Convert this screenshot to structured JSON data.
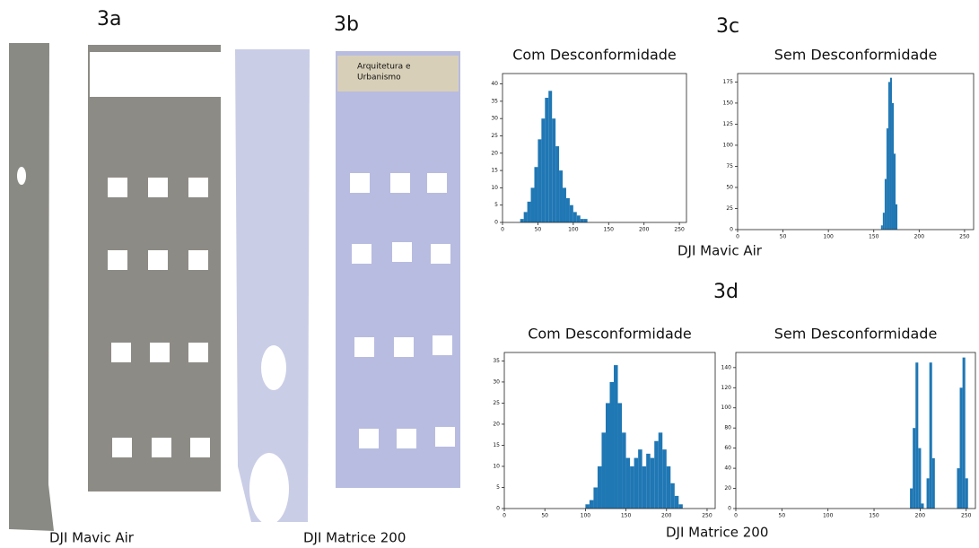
{
  "figure": {
    "labels": [
      "3a",
      "3b",
      "3c",
      "3d"
    ],
    "captions": [
      "DJI Mavic Air",
      "DJI Matrice 200",
      "DJI Mavic Air",
      "DJI Matrice 200"
    ],
    "photo_text": [
      "Arquitetura e",
      "Urbanismo"
    ]
  },
  "chart_data": [
    {
      "type": "histogram",
      "title": "Com Desconformidade",
      "color": "#1f77b4",
      "bins": [
        25,
        30,
        35,
        40,
        45,
        50,
        55,
        60,
        65,
        70,
        75,
        80,
        85,
        90,
        95,
        100,
        105,
        110,
        115,
        120,
        125
      ],
      "values": [
        1,
        3,
        6,
        10,
        16,
        24,
        30,
        36,
        38,
        30,
        22,
        15,
        10,
        7,
        5,
        3,
        2,
        1,
        1,
        0
      ],
      "xlim": [
        0,
        260
      ],
      "xticks": [
        0,
        50,
        100,
        150,
        200,
        250
      ],
      "ylim": [
        0,
        43
      ],
      "yticks": [
        0,
        5,
        10,
        15,
        20,
        25,
        30,
        35,
        40
      ]
    },
    {
      "type": "histogram",
      "title": "Sem Desconformidade",
      "color": "#1f77b4",
      "bins": [
        158,
        160,
        162,
        164,
        166,
        168,
        170,
        172,
        174,
        176
      ],
      "values": [
        5,
        20,
        60,
        120,
        175,
        180,
        150,
        90,
        30
      ],
      "xlim": [
        0,
        260
      ],
      "xticks": [
        0,
        50,
        100,
        150,
        200,
        250
      ],
      "ylim": [
        0,
        185
      ],
      "yticks": [
        0,
        25,
        50,
        75,
        100,
        125,
        150,
        175
      ]
    },
    {
      "type": "histogram",
      "title": "Com Desconformidade",
      "color": "#1f77b4",
      "bins": [
        100,
        105,
        110,
        115,
        120,
        125,
        130,
        135,
        140,
        145,
        150,
        155,
        160,
        165,
        170,
        175,
        180,
        185,
        190,
        195,
        200,
        205,
        210,
        215,
        220
      ],
      "values": [
        1,
        2,
        5,
        10,
        18,
        25,
        30,
        34,
        25,
        18,
        12,
        10,
        12,
        14,
        10,
        13,
        12,
        16,
        18,
        14,
        10,
        6,
        3,
        1
      ],
      "xlim": [
        0,
        260
      ],
      "xticks": [
        0,
        50,
        100,
        150,
        200,
        250
      ],
      "ylim": [
        0,
        37
      ],
      "yticks": [
        0,
        5,
        10,
        15,
        20,
        25,
        30,
        35
      ]
    },
    {
      "type": "histogram",
      "title": "Sem Desconformidade",
      "color": "#1f77b4",
      "bins": [
        189,
        192,
        195,
        198,
        201,
        204,
        207,
        210,
        213,
        216,
        219,
        222,
        225,
        228,
        231,
        234,
        237,
        240,
        243,
        246,
        249,
        252
      ],
      "values": [
        20,
        80,
        145,
        60,
        5,
        0,
        30,
        145,
        50,
        0,
        0,
        0,
        0,
        0,
        0,
        0,
        0,
        40,
        120,
        150,
        30
      ],
      "xlim": [
        0,
        260
      ],
      "xticks": [
        0,
        50,
        100,
        150,
        200,
        250
      ],
      "ylim": [
        0,
        155
      ],
      "yticks": [
        0,
        20,
        40,
        60,
        80,
        100,
        120,
        140
      ]
    }
  ]
}
